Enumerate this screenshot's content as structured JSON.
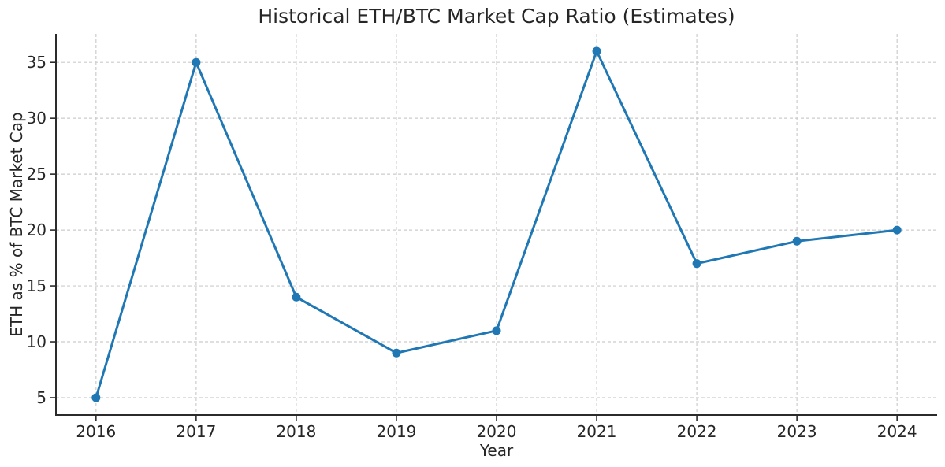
{
  "chart_data": {
    "type": "line",
    "title": "Historical ETH/BTC Market Cap Ratio (Estimates)",
    "xlabel": "Year",
    "ylabel": "ETH as % of BTC Market Cap",
    "x": [
      2016,
      2017,
      2018,
      2019,
      2020,
      2021,
      2022,
      2023,
      2024
    ],
    "series": [
      {
        "name": "ETH as % of BTC Market Cap",
        "values": [
          5,
          35,
          14,
          9,
          11,
          36,
          17,
          19,
          20
        ]
      }
    ],
    "y_ticks": [
      5,
      10,
      15,
      20,
      25,
      30,
      35
    ],
    "xlim": [
      2015.6,
      2024.4
    ],
    "ylim": [
      3.45,
      37.55
    ],
    "grid": true,
    "grid_style": "dashed",
    "legend": "none",
    "marker": "circle",
    "colors": {
      "line": "#1f77b4",
      "marker": "#1f77b4",
      "grid": "#cccccc",
      "spine": "#2b2b2b",
      "text": "#262626"
    }
  }
}
